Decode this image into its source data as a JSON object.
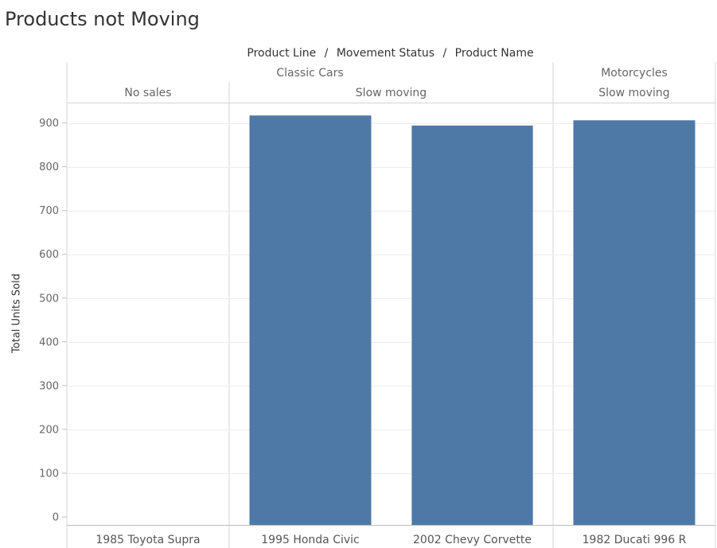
{
  "page_title": "Products not Moving",
  "header": {
    "levels": [
      "Product Line",
      "Movement Status",
      "Product Name"
    ],
    "separator": "/"
  },
  "product_lines": [
    {
      "label": "Classic Cars"
    },
    {
      "label": "Motorcycles"
    }
  ],
  "statuses": [
    {
      "label": "No sales"
    },
    {
      "label": "Slow moving"
    },
    {
      "label": "Slow moving"
    }
  ],
  "bar_color": "#4e79a7",
  "chart_data": {
    "type": "bar",
    "categories": [
      "1985 Toyota Supra",
      "1995 Honda Civic",
      "2002 Chevy Corvette",
      "1982 Ducati 996 R"
    ],
    "values": [
      0,
      917,
      894,
      906
    ],
    "ylabel": "Total Units Sold",
    "ylim": [
      0,
      1000
    ],
    "yticks": [
      0,
      100,
      200,
      300,
      400,
      500,
      600,
      700,
      800,
      900
    ],
    "grid": true
  }
}
